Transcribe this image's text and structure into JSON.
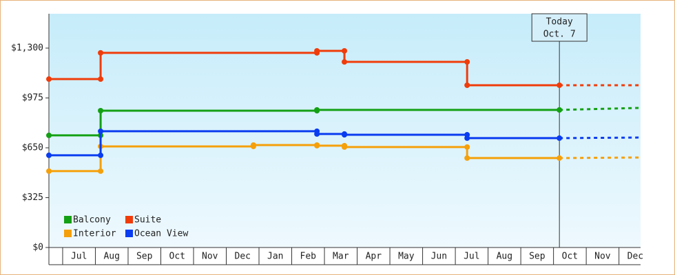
{
  "chart_data": {
    "type": "step-line",
    "annotation": {
      "title": "Today",
      "label": "Oct. 7",
      "x": 15.18
    },
    "xlim": [
      -0.42,
      17.66
    ],
    "xticks": [
      {
        "value": 0.5,
        "label": "Jul"
      },
      {
        "value": 1.5,
        "label": "Aug"
      },
      {
        "value": 2.5,
        "label": "Sep"
      },
      {
        "value": 3.5,
        "label": "Oct"
      },
      {
        "value": 4.5,
        "label": "Nov"
      },
      {
        "value": 5.5,
        "label": "Dec"
      },
      {
        "value": 6.5,
        "label": "Jan"
      },
      {
        "value": 7.5,
        "label": "Feb"
      },
      {
        "value": 8.5,
        "label": "Mar"
      },
      {
        "value": 9.5,
        "label": "Apr"
      },
      {
        "value": 10.5,
        "label": "May"
      },
      {
        "value": 11.5,
        "label": "Jun"
      },
      {
        "value": 12.5,
        "label": "Jul"
      },
      {
        "value": 13.5,
        "label": "Aug"
      },
      {
        "value": 14.5,
        "label": "Sep"
      },
      {
        "value": 15.5,
        "label": "Oct"
      },
      {
        "value": 16.5,
        "label": "Nov"
      },
      {
        "value": 17.5,
        "label": "Dec"
      }
    ],
    "ylim": [
      0,
      1524
    ],
    "yticks": [
      {
        "value": 0,
        "label": "$0"
      },
      {
        "value": 325,
        "label": "$325"
      },
      {
        "value": 650,
        "label": "$650"
      },
      {
        "value": 975,
        "label": "$975"
      },
      {
        "value": 1300,
        "label": "$1,300"
      }
    ],
    "series": [
      {
        "name": "Balcony",
        "color": "#14a014",
        "x": [
          -0.42,
          1.16,
          1.16,
          7.77,
          7.77,
          15.18
        ],
        "values": [
          731,
          731,
          892,
          892,
          897,
          897
        ],
        "forecast": {
          "x": [
            15.18,
            17.66
          ],
          "values": [
            897,
            910
          ]
        }
      },
      {
        "name": "Suite",
        "color": "#f03c0a",
        "x": [
          -0.42,
          1.16,
          1.16,
          7.77,
          7.77,
          8.61,
          8.61,
          12.36,
          12.36,
          15.18
        ],
        "values": [
          1098,
          1098,
          1269,
          1269,
          1282,
          1282,
          1210,
          1210,
          1058,
          1058
        ],
        "forecast": {
          "x": [
            15.18,
            17.66
          ],
          "values": [
            1058,
            1058
          ]
        }
      },
      {
        "name": "Interior",
        "color": "#f5a00a",
        "x": [
          -0.42,
          1.16,
          1.16,
          5.83,
          5.83,
          7.77,
          7.77,
          8.61,
          8.61,
          12.36,
          12.36,
          15.18
        ],
        "values": [
          498,
          498,
          659,
          659,
          668,
          668,
          664,
          664,
          655,
          655,
          583,
          583
        ],
        "forecast": {
          "x": [
            15.18,
            17.66
          ],
          "values": [
            583,
            587
          ]
        }
      },
      {
        "name": "Ocean View",
        "color": "#0a3cf0",
        "x": [
          -0.42,
          1.16,
          1.16,
          7.77,
          7.77,
          8.61,
          8.61,
          12.36,
          12.36,
          15.18
        ],
        "values": [
          601,
          601,
          758,
          758,
          740,
          740,
          735,
          735,
          713,
          713
        ],
        "forecast": {
          "x": [
            15.18,
            17.66
          ],
          "values": [
            713,
            717
          ]
        }
      }
    ]
  }
}
